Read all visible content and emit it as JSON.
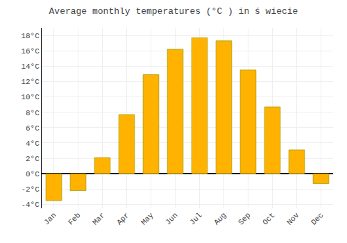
{
  "chart_data": {
    "type": "bar",
    "title": "Average monthly temperatures (°C ) in ś wiecie",
    "categories": [
      "Jan",
      "Feb",
      "Mar",
      "Apr",
      "May",
      "Jun",
      "Jul",
      "Aug",
      "Sep",
      "Oct",
      "Nov",
      "Dec"
    ],
    "values": [
      -3.5,
      -2.2,
      2.1,
      7.7,
      12.9,
      16.2,
      17.7,
      17.3,
      13.5,
      8.7,
      3.1,
      -1.3
    ],
    "color": "#FFB300",
    "ylim": [
      -4.5,
      19.0
    ],
    "yticks": [
      {
        "value": -4,
        "label": "-4°C"
      },
      {
        "value": -2,
        "label": "-2°C"
      },
      {
        "value": 0,
        "label": "0°C"
      },
      {
        "value": 2,
        "label": "2°C"
      },
      {
        "value": 4,
        "label": "4°C"
      },
      {
        "value": 6,
        "label": "6°C"
      },
      {
        "value": 8,
        "label": "8°C"
      },
      {
        "value": 10,
        "label": "10°C"
      },
      {
        "value": 12,
        "label": "12°C"
      },
      {
        "value": 14,
        "label": "14°C"
      },
      {
        "value": 16,
        "label": "16°C"
      },
      {
        "value": 18,
        "label": "18°C"
      }
    ],
    "grid": true
  }
}
